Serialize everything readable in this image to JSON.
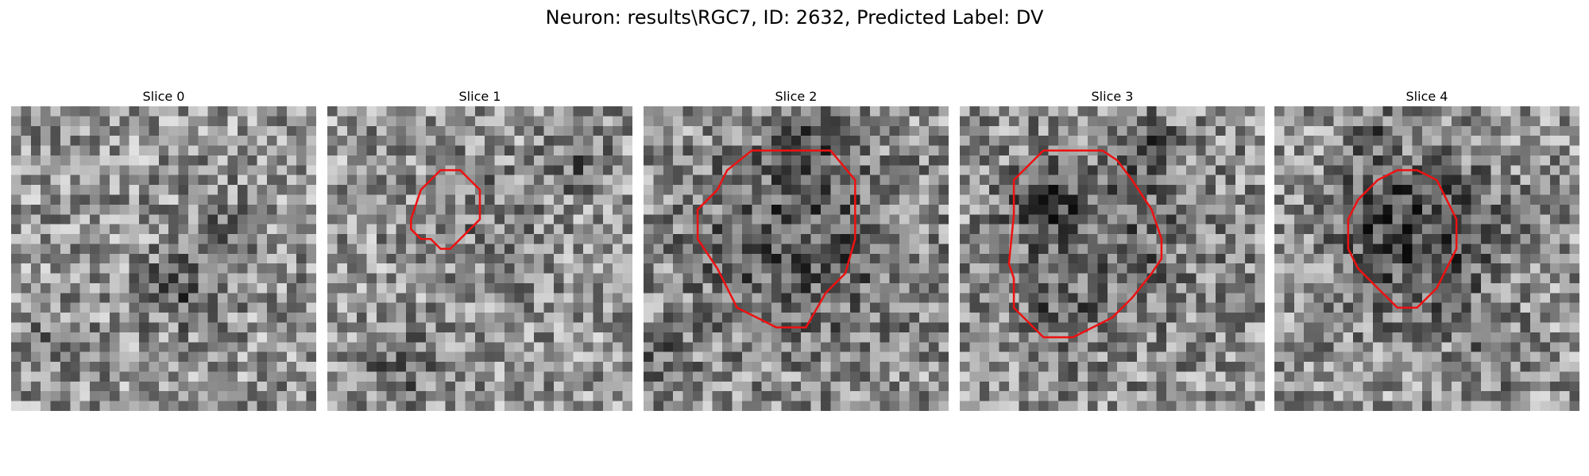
{
  "figure": {
    "title": "Neuron: results\\RGC7, ID: 2632, Predicted Label: DV"
  },
  "contour_color": "#ee1111",
  "colormap": "grayscale",
  "slices": [
    {
      "title": "Slice 0",
      "has_contour": false
    },
    {
      "title": "Slice 1",
      "has_contour": true
    },
    {
      "title": "Slice 2",
      "has_contour": true
    },
    {
      "title": "Slice 3",
      "has_contour": true
    },
    {
      "title": "Slice 4",
      "has_contour": true
    }
  ]
}
